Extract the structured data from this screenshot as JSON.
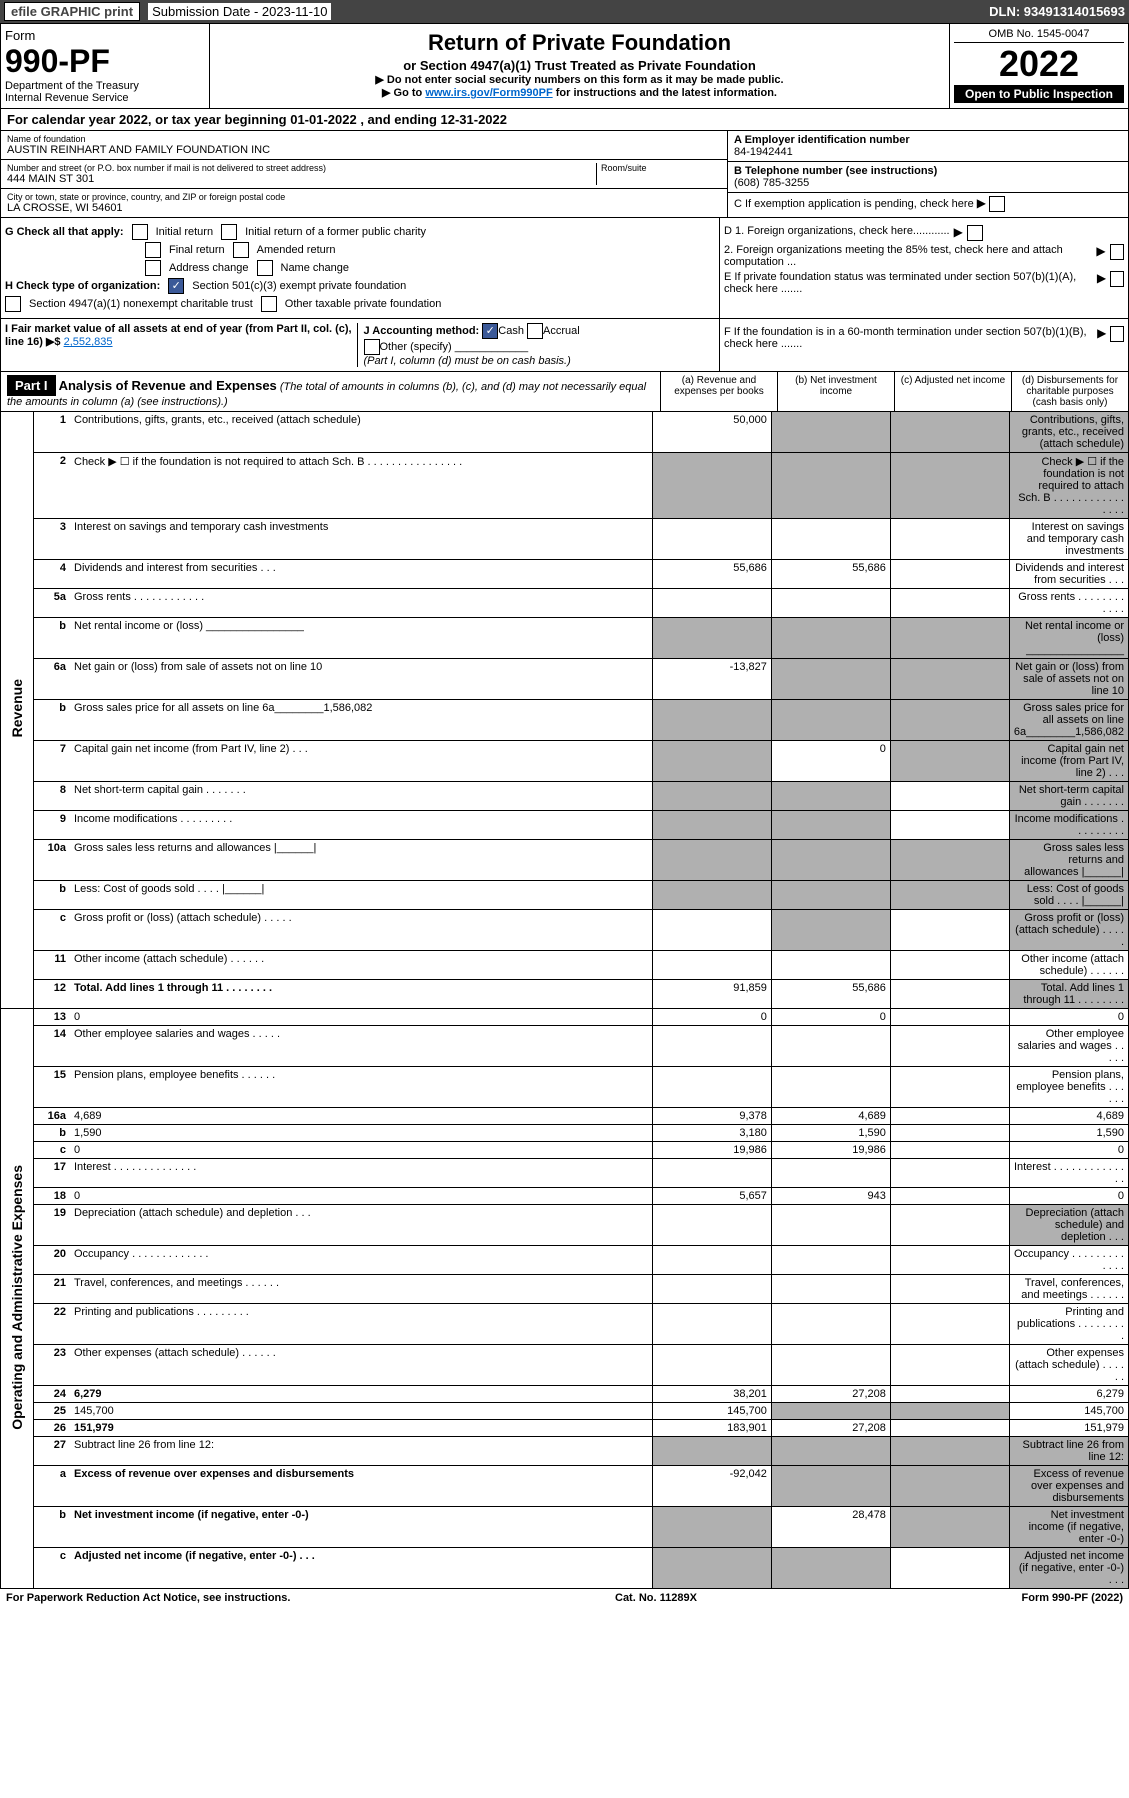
{
  "top": {
    "efile": "efile GRAPHIC print",
    "sub_label": "Submission Date - 2023-11-10",
    "dln": "DLN: 93491314015693"
  },
  "header": {
    "form": "Form",
    "form_no": "990-PF",
    "dept": "Department of the Treasury",
    "irs": "Internal Revenue Service",
    "title": "Return of Private Foundation",
    "subtitle": "or Section 4947(a)(1) Trust Treated as Private Foundation",
    "note1": "▶ Do not enter social security numbers on this form as it may be made public.",
    "note2_pre": "▶ Go to ",
    "note2_link": "www.irs.gov/Form990PF",
    "note2_post": " for instructions and the latest information.",
    "omb": "OMB No. 1545-0047",
    "year": "2022",
    "open": "Open to Public Inspection"
  },
  "cal": "For calendar year 2022, or tax year beginning 01-01-2022          , and ending 12-31-2022",
  "info": {
    "name_lbl": "Name of foundation",
    "name": "AUSTIN REINHART AND FAMILY FOUNDATION INC",
    "addr_lbl": "Number and street (or P.O. box number if mail is not delivered to street address)",
    "addr": "444 MAIN ST 301",
    "room_lbl": "Room/suite",
    "city_lbl": "City or town, state or province, country, and ZIP or foreign postal code",
    "city": "LA CROSSE, WI  54601",
    "a_lbl": "A Employer identification number",
    "a": "84-1942441",
    "b_lbl": "B Telephone number (see instructions)",
    "b": "(608) 785-3255",
    "c_lbl": "C If exemption application is pending, check here"
  },
  "g": {
    "label": "G Check all that apply:",
    "initial": "Initial return",
    "final": "Final return",
    "addr": "Address change",
    "initial_former": "Initial return of a former public charity",
    "amended": "Amended return",
    "name": "Name change"
  },
  "h": {
    "label": "H Check type of organization:",
    "501c3": "Section 501(c)(3) exempt private foundation",
    "4947": "Section 4947(a)(1) nonexempt charitable trust",
    "other": "Other taxable private foundation"
  },
  "i": {
    "label": "I Fair market value of all assets at end of year (from Part II, col. (c), line 16) ▶$ ",
    "val": "2,552,835"
  },
  "j": {
    "label": "J Accounting method:",
    "cash": "Cash",
    "accrual": "Accrual",
    "other": "Other (specify)",
    "note": "(Part I, column (d) must be on cash basis.)"
  },
  "right": {
    "d1": "D 1. Foreign organizations, check here............",
    "d2": "2. Foreign organizations meeting the 85% test, check here and attach computation ...",
    "e": "E  If private foundation status was terminated under section 507(b)(1)(A), check here .......",
    "f": "F  If the foundation is in a 60-month termination under section 507(b)(1)(B), check here ......."
  },
  "part1": {
    "label": "Part I",
    "title": "Analysis of Revenue and Expenses",
    "note": "(The total of amounts in columns (b), (c), and (d) may not necessarily equal the amounts in column (a) (see instructions).)",
    "col_a": "(a)   Revenue and expenses per books",
    "col_b": "(b)   Net investment income",
    "col_c": "(c)   Adjusted net income",
    "col_d": "(d)  Disbursements for charitable purposes (cash basis only)"
  },
  "vlabels": {
    "rev": "Revenue",
    "exp": "Operating and Administrative Expenses"
  },
  "rows": [
    {
      "n": "1",
      "d": "Contributions, gifts, grants, etc., received (attach schedule)",
      "a": "50,000",
      "grey": [
        "b",
        "c",
        "d"
      ]
    },
    {
      "n": "2",
      "d": "Check ▶ ☐ if the foundation is not required to attach Sch. B     .  .  .  .  .  .  .  .  .  .  .  .  .  .  .  .",
      "grey": [
        "a",
        "b",
        "c",
        "d"
      ]
    },
    {
      "n": "3",
      "d": "Interest on savings and temporary cash investments"
    },
    {
      "n": "4",
      "d": "Dividends and interest from securities    .   .   .",
      "a": "55,686",
      "b": "55,686"
    },
    {
      "n": "5a",
      "d": "Gross rents     .   .   .   .   .   .   .   .   .   .   .   ."
    },
    {
      "n": "b",
      "d": "Net rental income or (loss)  ________________",
      "grey": [
        "a",
        "b",
        "c",
        "d"
      ]
    },
    {
      "n": "6a",
      "d": "Net gain or (loss) from sale of assets not on line 10",
      "a": "-13,827",
      "grey": [
        "b",
        "c",
        "d"
      ]
    },
    {
      "n": "b",
      "d": "Gross sales price for all assets on line 6a________1,586,082",
      "grey": [
        "a",
        "b",
        "c",
        "d"
      ]
    },
    {
      "n": "7",
      "d": "Capital gain net income (from Part IV, line 2)   .   .   .",
      "b": "0",
      "grey": [
        "a",
        "c",
        "d"
      ]
    },
    {
      "n": "8",
      "d": "Net short-term capital gain   .   .   .   .   .   .   .",
      "grey": [
        "a",
        "b",
        "d"
      ]
    },
    {
      "n": "9",
      "d": "Income modifications  .   .   .   .   .   .   .   .   .",
      "grey": [
        "a",
        "b",
        "d"
      ]
    },
    {
      "n": "10a",
      "d": "Gross sales less returns and allowances  |______|",
      "grey": [
        "a",
        "b",
        "c",
        "d"
      ]
    },
    {
      "n": "b",
      "d": "Less: Cost of goods sold     .   .   .   .   |______|",
      "grey": [
        "a",
        "b",
        "c",
        "d"
      ]
    },
    {
      "n": "c",
      "d": "Gross profit or (loss) (attach schedule)    .   .   .   .   .",
      "grey": [
        "b",
        "d"
      ]
    },
    {
      "n": "11",
      "d": "Other income (attach schedule)    .   .   .   .   .   ."
    },
    {
      "n": "12",
      "d": "Total. Add lines 1 through 11   .   .   .   .   .   .   .   .",
      "a": "91,859",
      "b": "55,686",
      "grey": [
        "d"
      ],
      "bold": true
    },
    {
      "n": "13",
      "d": "0",
      "a": "0",
      "b": "0"
    },
    {
      "n": "14",
      "d": "Other employee salaries and wages    .   .   .   .   ."
    },
    {
      "n": "15",
      "d": "Pension plans, employee benefits   .   .   .   .   .   ."
    },
    {
      "n": "16a",
      "d": "4,689",
      "a": "9,378",
      "b": "4,689"
    },
    {
      "n": "b",
      "d": "1,590",
      "a": "3,180",
      "b": "1,590"
    },
    {
      "n": "c",
      "d": "0",
      "a": "19,986",
      "b": "19,986"
    },
    {
      "n": "17",
      "d": "Interest  .   .   .   .   .   .   .   .   .   .   .   .   .   ."
    },
    {
      "n": "18",
      "d": "0",
      "a": "5,657",
      "b": "943"
    },
    {
      "n": "19",
      "d": "Depreciation (attach schedule) and depletion    .   .   .",
      "grey": [
        "d"
      ]
    },
    {
      "n": "20",
      "d": "Occupancy  .   .   .   .   .   .   .   .   .   .   .   .   ."
    },
    {
      "n": "21",
      "d": "Travel, conferences, and meetings  .   .   .   .   .   ."
    },
    {
      "n": "22",
      "d": "Printing and publications  .   .   .   .   .   .   .   .   ."
    },
    {
      "n": "23",
      "d": "Other expenses (attach schedule)  .   .   .   .   .   ."
    },
    {
      "n": "24",
      "d": "6,279",
      "a": "38,201",
      "b": "27,208",
      "bold": true
    },
    {
      "n": "25",
      "d": "145,700",
      "a": "145,700",
      "grey": [
        "b",
        "c"
      ]
    },
    {
      "n": "26",
      "d": "151,979",
      "a": "183,901",
      "b": "27,208",
      "bold": true
    },
    {
      "n": "27",
      "d": "Subtract line 26 from line 12:",
      "grey": [
        "a",
        "b",
        "c",
        "d"
      ]
    },
    {
      "n": "a",
      "d": "Excess of revenue over expenses and disbursements",
      "a": "-92,042",
      "grey": [
        "b",
        "c",
        "d"
      ],
      "bold": true
    },
    {
      "n": "b",
      "d": "Net investment income (if negative, enter -0-)",
      "b": "28,478",
      "grey": [
        "a",
        "c",
        "d"
      ],
      "bold": true
    },
    {
      "n": "c",
      "d": "Adjusted net income (if negative, enter -0-)   .   .   .",
      "grey": [
        "a",
        "b",
        "d"
      ],
      "bold": true
    }
  ],
  "footer": {
    "left": "For Paperwork Reduction Act Notice, see instructions.",
    "mid": "Cat. No. 11289X",
    "right": "Form 990-PF (2022)"
  }
}
